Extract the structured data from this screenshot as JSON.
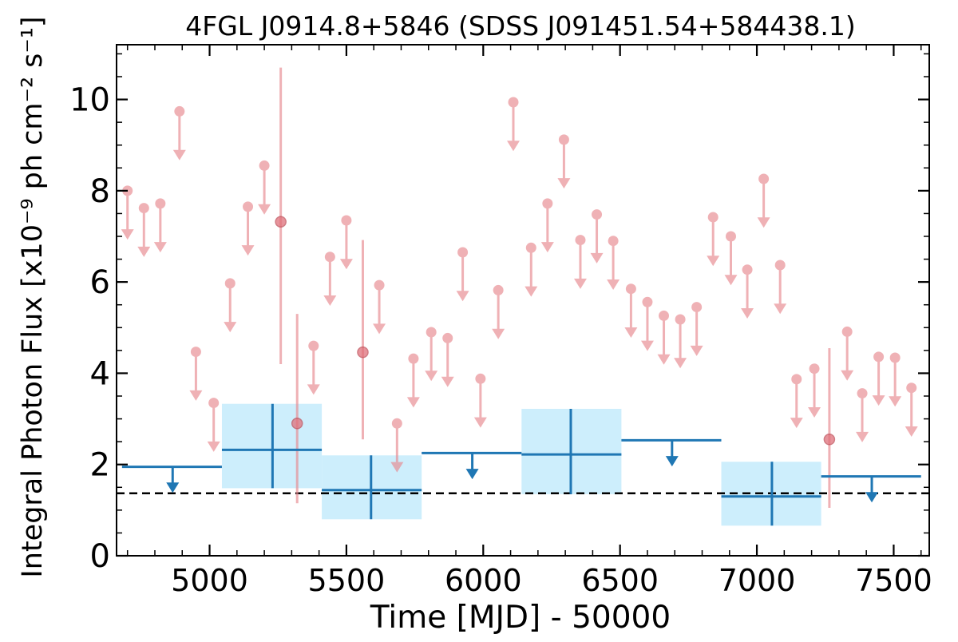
{
  "chart_data": {
    "type": "scatter",
    "title": "4FGL J0914.8+5846 (SDSS J091451.54+584438.1)",
    "xlabel": "Time [MJD] - 50000",
    "ylabel": "Integral Photon Flux [x10⁻⁹ ph cm⁻² s⁻¹]",
    "xlim": [
      4660,
      7630
    ],
    "ylim": [
      0,
      11.2
    ],
    "xticks": [
      5000,
      5500,
      6000,
      6500,
      7000,
      7500
    ],
    "yticks": [
      0,
      2,
      4,
      6,
      8,
      10
    ],
    "grid": false,
    "legend": "none",
    "colors": {
      "short_bins": "#e8888f",
      "long_bins": "#1f77b4",
      "long_bin_band": "#cdeefc",
      "baseline": "#000000"
    },
    "reference_line": {
      "y": 1.37,
      "style": "dashed"
    },
    "short_bin_upper_limits": [
      {
        "x": 4700,
        "y": 8.0
      },
      {
        "x": 4760,
        "y": 7.62
      },
      {
        "x": 4820,
        "y": 7.72
      },
      {
        "x": 4890,
        "y": 9.74
      },
      {
        "x": 4950,
        "y": 4.47
      },
      {
        "x": 5015,
        "y": 3.35
      },
      {
        "x": 5075,
        "y": 5.97
      },
      {
        "x": 5140,
        "y": 7.65
      },
      {
        "x": 5200,
        "y": 8.55
      },
      {
        "x": 5380,
        "y": 4.6
      },
      {
        "x": 5440,
        "y": 6.55
      },
      {
        "x": 5500,
        "y": 7.35
      },
      {
        "x": 5620,
        "y": 5.93
      },
      {
        "x": 5685,
        "y": 2.9
      },
      {
        "x": 5745,
        "y": 4.32
      },
      {
        "x": 5810,
        "y": 4.9
      },
      {
        "x": 5870,
        "y": 4.77
      },
      {
        "x": 5925,
        "y": 6.65
      },
      {
        "x": 5990,
        "y": 3.88
      },
      {
        "x": 6055,
        "y": 5.82
      },
      {
        "x": 6110,
        "y": 9.94
      },
      {
        "x": 6175,
        "y": 6.75
      },
      {
        "x": 6235,
        "y": 7.72
      },
      {
        "x": 6295,
        "y": 9.12
      },
      {
        "x": 6355,
        "y": 6.92
      },
      {
        "x": 6415,
        "y": 7.48
      },
      {
        "x": 6475,
        "y": 6.9
      },
      {
        "x": 6540,
        "y": 5.85
      },
      {
        "x": 6600,
        "y": 5.56
      },
      {
        "x": 6660,
        "y": 5.26
      },
      {
        "x": 6720,
        "y": 5.18
      },
      {
        "x": 6780,
        "y": 5.45
      },
      {
        "x": 6840,
        "y": 7.42
      },
      {
        "x": 6905,
        "y": 7.0
      },
      {
        "x": 6965,
        "y": 6.27
      },
      {
        "x": 7025,
        "y": 8.26
      },
      {
        "x": 7085,
        "y": 6.37
      },
      {
        "x": 7145,
        "y": 3.87
      },
      {
        "x": 7210,
        "y": 4.1
      },
      {
        "x": 7330,
        "y": 4.91
      },
      {
        "x": 7385,
        "y": 3.56
      },
      {
        "x": 7445,
        "y": 4.36
      },
      {
        "x": 7505,
        "y": 4.34
      },
      {
        "x": 7565,
        "y": 3.68
      }
    ],
    "short_bin_detections": [
      {
        "x": 5260,
        "y": 7.32,
        "ylo": 4.2,
        "yhi": 10.7
      },
      {
        "x": 5320,
        "y": 2.9,
        "ylo": 1.15,
        "yhi": 5.3
      },
      {
        "x": 5560,
        "y": 4.46,
        "ylo": 2.55,
        "yhi": 6.92
      },
      {
        "x": 7265,
        "y": 2.55,
        "ylo": 1.05,
        "yhi": 4.55
      }
    ],
    "long_bin_detections": [
      {
        "x0": 5045,
        "x1": 5410,
        "x": 5230,
        "y": 2.32,
        "ylo": 1.48,
        "yhi": 3.33
      },
      {
        "x0": 5410,
        "x1": 5775,
        "x": 5590,
        "y": 1.44,
        "ylo": 0.8,
        "yhi": 2.2
      },
      {
        "x0": 6140,
        "x1": 6505,
        "x": 6320,
        "y": 2.22,
        "ylo": 1.35,
        "yhi": 3.22
      },
      {
        "x0": 6870,
        "x1": 7235,
        "x": 7055,
        "y": 1.3,
        "ylo": 0.66,
        "yhi": 2.06
      }
    ],
    "long_bin_upper_limits": [
      {
        "x0": 4680,
        "x1": 5045,
        "x": 4865,
        "y": 1.95
      },
      {
        "x0": 5775,
        "x1": 6140,
        "x": 5960,
        "y": 2.25
      },
      {
        "x0": 6505,
        "x1": 6870,
        "x": 6690,
        "y": 2.53
      },
      {
        "x0": 7235,
        "x1": 7600,
        "x": 7420,
        "y": 1.74
      }
    ]
  }
}
